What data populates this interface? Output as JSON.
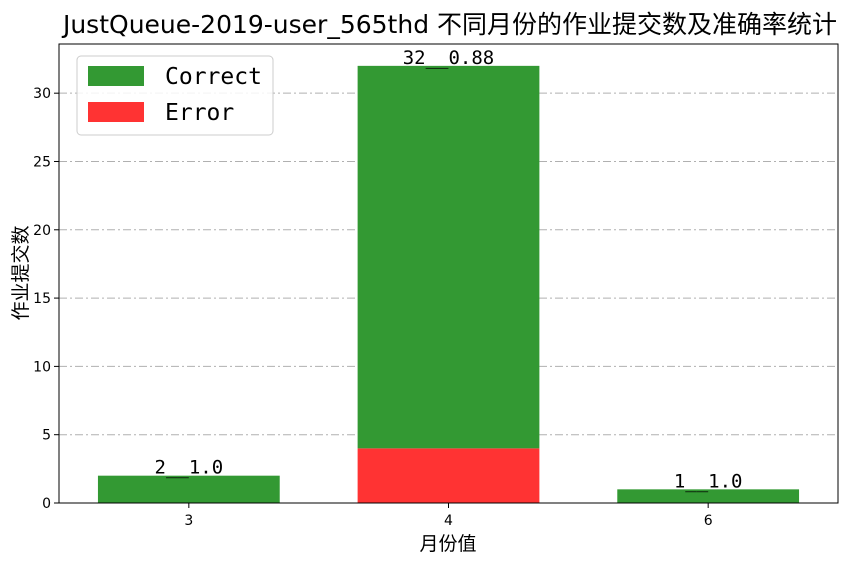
{
  "chart_data": {
    "type": "bar",
    "stacked": true,
    "title": "JustQueue-2019-user_565thd 不同月份的作业提交数及准确率统计",
    "xlabel": "月份值",
    "ylabel": "作业提交数",
    "categories": [
      "3",
      "4",
      "6"
    ],
    "series": [
      {
        "name": "Error",
        "values": [
          0,
          4,
          0
        ],
        "color": "#ff3333"
      },
      {
        "name": "Correct",
        "values": [
          2,
          28,
          1
        ],
        "color": "#339933"
      }
    ],
    "data_labels": [
      "2__1.0",
      "32__0.88",
      "1__1.0"
    ],
    "totals": [
      2,
      32,
      1
    ],
    "ylim": [
      0,
      33.6
    ],
    "yticks": [
      0,
      5,
      10,
      15,
      20,
      25,
      30
    ],
    "grid": "y-dashdot",
    "legend": {
      "position": "top-left",
      "entries": [
        {
          "name": "Correct",
          "color": "#339933"
        },
        {
          "name": "Error",
          "color": "#ff3333"
        }
      ]
    }
  }
}
